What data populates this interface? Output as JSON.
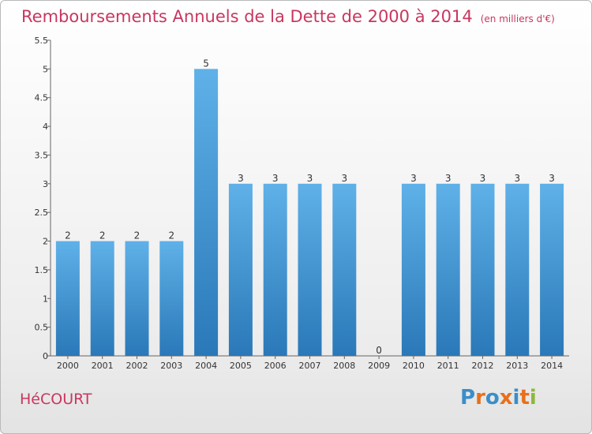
{
  "header": {
    "title": "Remboursements Annuels de la Dette de 2000 à 2014",
    "unit": "(en milliers d'€)"
  },
  "footer": {
    "city": "HéCOURT",
    "brand": [
      "P",
      "r",
      "o",
      "x",
      "i",
      "t",
      "i"
    ],
    "brand_colors": [
      "#3b8ec8",
      "#e8701a",
      "#3b8ec8",
      "#e8701a",
      "#3b8ec8",
      "#e8701a",
      "#8cb83c"
    ]
  },
  "chart_data": {
    "type": "bar",
    "title": "Remboursements Annuels de la Dette de 2000 à 2014",
    "unit": "(en milliers d'€)",
    "categories": [
      "2000",
      "2001",
      "2002",
      "2003",
      "2004",
      "2005",
      "2006",
      "2007",
      "2008",
      "2009",
      "2010",
      "2011",
      "2012",
      "2013",
      "2014"
    ],
    "values": [
      2,
      2,
      2,
      2,
      5,
      3,
      3,
      3,
      3,
      0,
      3,
      3,
      3,
      3,
      3
    ],
    "data_labels": [
      "2",
      "2",
      "2",
      "2",
      "5",
      "3",
      "3",
      "3",
      "3",
      "0",
      "3",
      "3",
      "3",
      "3",
      "3"
    ],
    "yticks": [
      "0",
      "0.5",
      "1",
      "1.5",
      "2",
      "2.5",
      "3",
      "3.5",
      "4",
      "4.5",
      "5",
      "5.5"
    ],
    "ylim": [
      0,
      5.5
    ],
    "grid": false,
    "bar_color": "#4a9fdb",
    "title_color": "#c8375f"
  }
}
